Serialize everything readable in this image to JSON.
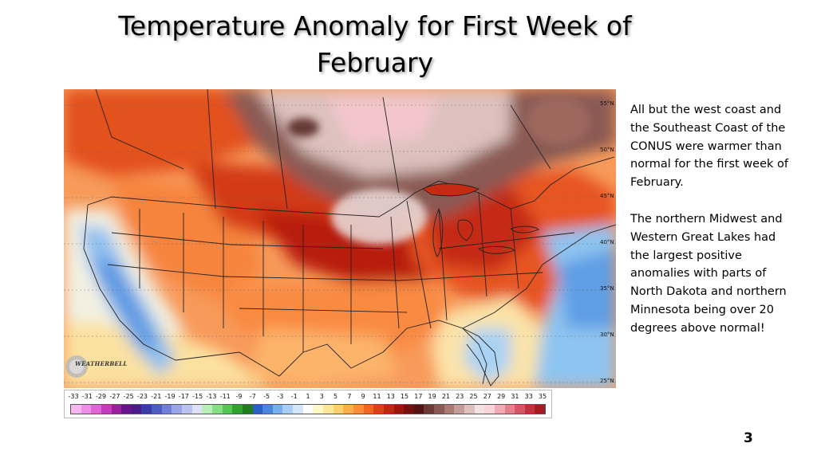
{
  "slide": {
    "title_line1": "Temperature Anomaly for First Week of",
    "title_line2": "February",
    "page_number": "3"
  },
  "notes": {
    "paragraph1": "All but the west coast and the Southeast Coast of the CONUS were warmer than normal for the first week of February.",
    "paragraph2": "The northern Midwest and Western Great Lakes had the largest positive anomalies  with parts of North Dakota and northern Minnesota being over 20 degrees above normal!"
  },
  "map": {
    "latitude_labels": [
      "55°N",
      "50°N",
      "45°N",
      "40°N",
      "35°N",
      "30°N",
      "25°N"
    ],
    "logo_text": "WEATHERBELL"
  },
  "legend": {
    "ticks": [
      "-33",
      "-31",
      "-29",
      "-27",
      "-25",
      "-23",
      "-21",
      "-19",
      "-17",
      "-15",
      "-13",
      "-11",
      "-9",
      "-7",
      "-5",
      "-3",
      "-1",
      "1",
      "3",
      "5",
      "7",
      "9",
      "11",
      "13",
      "15",
      "17",
      "19",
      "21",
      "23",
      "25",
      "27",
      "29",
      "31",
      "33",
      "35"
    ],
    "colors": [
      "#f7b6f2",
      "#ee8ee6",
      "#e064d6",
      "#c43cbe",
      "#9a1f9c",
      "#6b138c",
      "#4a1a8a",
      "#3a3aa8",
      "#4c5cc4",
      "#6f7fda",
      "#98a6e8",
      "#bcc3ef",
      "#dfe2f7",
      "#b9efb8",
      "#86df84",
      "#52c852",
      "#2fa32f",
      "#1e7d1e",
      "#2a5fc4",
      "#4a86e0",
      "#76aef0",
      "#a8cdf6",
      "#d4e6fb",
      "#ffffff",
      "#fff7c8",
      "#ffe79a",
      "#ffd06e",
      "#ffb04a",
      "#ff8c36",
      "#f26422",
      "#de3f17",
      "#c1240f",
      "#9c140c",
      "#76100f",
      "#551212",
      "#6b3a33",
      "#8a5a52",
      "#a87a72",
      "#c39d97",
      "#dcc1bd",
      "#f2e3e1",
      "#f9d4d8",
      "#f2aab4",
      "#e77f8d",
      "#d85565",
      "#c42e40",
      "#a81a22"
    ]
  }
}
